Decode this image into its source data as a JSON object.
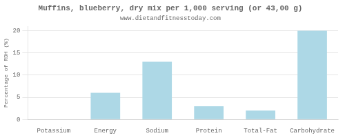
{
  "chart_data": {
    "type": "bar",
    "title": "Muffins, blueberry, dry mix per 1,000 serving (or 43,00 g)",
    "subtitle": "www.dietandfitnesstoday.com",
    "categories": [
      "Potassium",
      "Energy",
      "Sodium",
      "Protein",
      "Total-Fat",
      "Carbohydrate"
    ],
    "values": [
      0,
      6,
      13,
      3,
      2,
      20
    ],
    "color": "#add8e6",
    "ylabel": "Percentage of RDH (%)",
    "ylim": [
      0,
      21
    ],
    "yticks": [
      0,
      5,
      10,
      15,
      20
    ],
    "grid": true
  }
}
